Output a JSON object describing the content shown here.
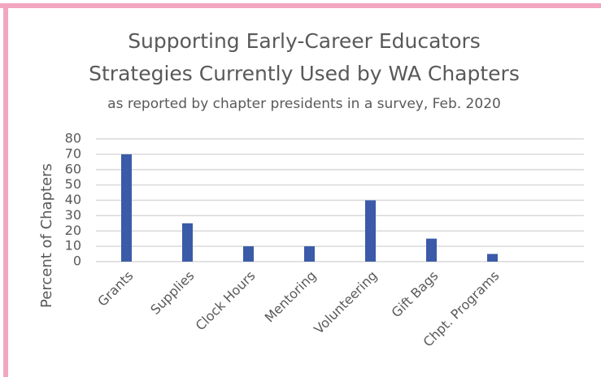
{
  "chart_data": {
    "type": "bar",
    "title": "Supporting Early-Career Educators",
    "subtitle": "Strategies Currently Used by WA Chapters",
    "note": "as reported by chapter presidents in a survey, Feb. 2020",
    "y_label": "Percent of Chapters",
    "categories": [
      "Grants",
      "Supplies",
      "Clock Hours",
      "Mentoring",
      "Volunteering",
      "Gift Bags",
      "Chpt. Programs",
      null
    ],
    "values": [
      70,
      25,
      10,
      10,
      40,
      15,
      5,
      null
    ],
    "color": "#3b5ba8",
    "ylim": [
      0,
      80
    ],
    "yticks": [
      0,
      10,
      20,
      30,
      40,
      50,
      60,
      70,
      80
    ],
    "grid": true
  }
}
